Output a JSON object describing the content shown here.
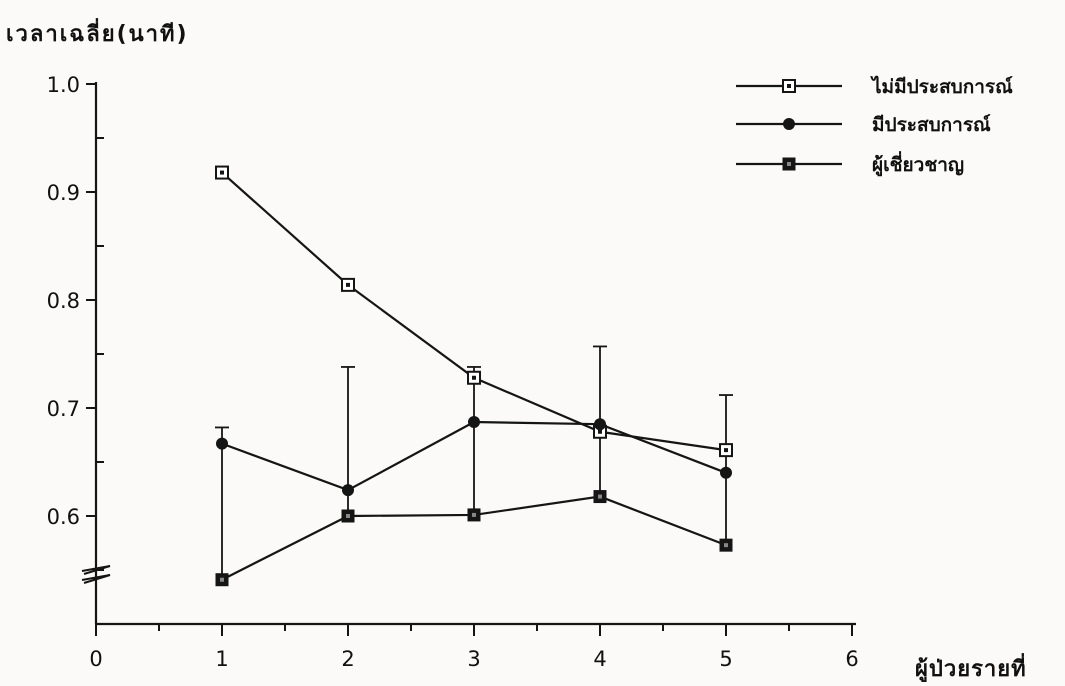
{
  "chart_data": {
    "type": "line",
    "xlabel": "ผู้ป่วยรายที่",
    "ylabel": "เวลาเฉลี่ย(นาที)",
    "xlim": [
      0,
      6
    ],
    "ylim": [
      0.5,
      1.0
    ],
    "y_axis_break": true,
    "x_ticks": [
      0,
      1,
      2,
      3,
      4,
      5,
      6
    ],
    "y_ticks": [
      0.6,
      0.7,
      0.8,
      0.9,
      1.0
    ],
    "x_tick_labels": [
      "0",
      "1",
      "2",
      "3",
      "4",
      "5",
      "6"
    ],
    "y_tick_labels": [
      "0.6",
      "0.7",
      "0.8",
      "0.9",
      "1.0"
    ],
    "grid": false,
    "legend_position": "top-right",
    "series": [
      {
        "name": "ไม่มีประสบการณ์",
        "marker": "open-square",
        "x": [
          1,
          2,
          3,
          4,
          5
        ],
        "values": [
          0.918,
          0.814,
          0.728,
          0.678,
          0.661
        ]
      },
      {
        "name": "มีประสบการณ์",
        "marker": "filled-circle",
        "x": [
          1,
          2,
          3,
          4,
          5
        ],
        "values": [
          0.667,
          0.624,
          0.687,
          0.685,
          0.64
        ],
        "error_upper": [
          0.682,
          0.738,
          0.738,
          0.757,
          0.712
        ]
      },
      {
        "name": "ผู้เชี่ยวชาญ",
        "marker": "filled-square",
        "x": [
          1,
          2,
          3,
          4,
          5
        ],
        "values": [
          0.541,
          0.6,
          0.601,
          0.618,
          0.573
        ]
      }
    ]
  }
}
